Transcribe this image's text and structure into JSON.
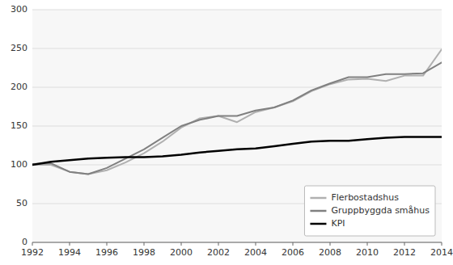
{
  "chart_data": {
    "type": "line",
    "x": [
      1992,
      1993,
      1994,
      1995,
      1996,
      1997,
      1998,
      1999,
      2000,
      2001,
      2002,
      2003,
      2004,
      2005,
      2006,
      2007,
      2008,
      2009,
      2010,
      2011,
      2012,
      2013,
      2014
    ],
    "series": [
      {
        "name": "Flerbostadshus",
        "color": "#b0b0b0",
        "values": [
          100,
          100,
          91,
          88,
          93,
          103,
          115,
          130,
          148,
          160,
          163,
          155,
          168,
          174,
          182,
          195,
          204,
          210,
          211,
          208,
          215,
          215,
          249
        ]
      },
      {
        "name": "Gruppbyggda småhus",
        "color": "#808080",
        "values": [
          101,
          102,
          91,
          88,
          96,
          108,
          120,
          135,
          150,
          158,
          163,
          163,
          170,
          174,
          183,
          196,
          205,
          213,
          213,
          217,
          217,
          218,
          232
        ]
      },
      {
        "name": "KPI",
        "color": "#000000",
        "values": [
          100,
          104,
          106,
          108,
          109,
          110,
          110,
          111,
          113,
          116,
          118,
          120,
          121,
          124,
          127,
          130,
          131,
          131,
          133,
          135,
          136,
          136,
          136
        ]
      }
    ],
    "xlim": [
      1992,
      2014
    ],
    "xticks": [
      1992,
      1994,
      1996,
      1998,
      2000,
      2002,
      2004,
      2006,
      2008,
      2010,
      2012,
      2014
    ],
    "ylim": [
      0,
      300
    ],
    "yticks": [
      0,
      50,
      100,
      150,
      200,
      250,
      300
    ],
    "grid": true,
    "legend": "lower right"
  }
}
